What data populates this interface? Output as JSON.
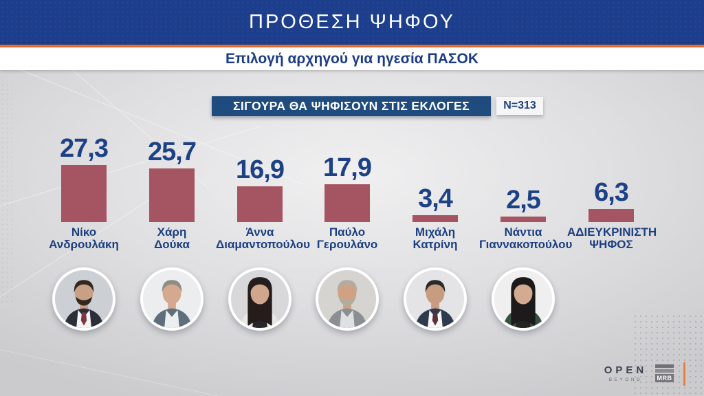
{
  "header": {
    "title": "ΠΡΟΘΕΣΗ ΨΗΦΟΥ",
    "subtitle": "Επιλογή αρχηγού για ηγεσία ΠΑΣΟΚ"
  },
  "chart_header": {
    "label": "ΣΙΓΟΥΡΑ ΘΑ ΨΗΦΙΣΟΥΝ ΣΤΙΣ ΕΚΛΟΓΕΣ",
    "sample": "N=313"
  },
  "chart_data": {
    "type": "bar",
    "title": "ΣΙΓΟΥΡΑ ΘΑ ΨΗΦΙΣΟΥΝ ΣΤΙΣ ΕΚΛΟΓΕΣ",
    "subtitle": "Επιλογή αρχηγού για ηγεσία ΠΑΣΟΚ",
    "sample_size": "N=313",
    "categories": [
      "Νίκο Ανδρουλάκη",
      "Χάρη Δούκα",
      "Άννα Διαμαντοπούλου",
      "Παύλο Γερουλάνο",
      "Μιχάλη Κατρίνη",
      "Νάντια Γιαννακοπούλου",
      "ΑΔΙΕΥΚΡΙΝΙΣΤΗ ΨΗΦΟΣ"
    ],
    "values": [
      27.3,
      25.7,
      16.9,
      17.9,
      3.4,
      2.5,
      6.3
    ],
    "value_labels": [
      "27,3",
      "25,7",
      "16,9",
      "17,9",
      "3,4",
      "2,5",
      "6,3"
    ],
    "unit": "percent",
    "bar_color": "#a55561",
    "label_color": "#1d4185",
    "ylim": [
      0,
      30
    ],
    "grid": false,
    "legend_position": "none",
    "xlabel": "",
    "ylabel": ""
  },
  "columns": [
    {
      "name_lines": [
        "Νίκο",
        "Ανδρουλάκη"
      ],
      "photo": true,
      "avatar": {
        "bg": "#ccd0d5",
        "hair": "#33281f",
        "skin": "#c99f85",
        "top": "#2b2f38",
        "shirt": "#f4f4f4",
        "tie": "#7e3742",
        "beard": true,
        "style": "short"
      }
    },
    {
      "name_lines": [
        "Χάρη",
        "Δούκα"
      ],
      "photo": true,
      "avatar": {
        "bg": "#ecedee",
        "hair": "#8f8c86",
        "skin": "#d4a98f",
        "top": "#5e6e7a",
        "shirt": "#eceff0",
        "beard": false,
        "style": "short"
      }
    },
    {
      "name_lines": [
        "Άννα",
        "Διαμαντοπούλου"
      ],
      "photo": true,
      "avatar": {
        "bg": "#d8d8da",
        "hair": "#241d1c",
        "skin": "#d0a68c",
        "top": "#e9e7e4",
        "shirt": "#26262b",
        "beard": false,
        "style": "long"
      }
    },
    {
      "name_lines": [
        "Παύλο",
        "Γερουλάνο"
      ],
      "photo": true,
      "avatar": {
        "bg": "#d6d4d0",
        "hair": "#b2aca0",
        "skin": "#cfa284",
        "top": "#8a8f93",
        "shirt": "#dfe0e1",
        "beard": true,
        "style": "short"
      }
    },
    {
      "name_lines": [
        "Μιχάλη",
        "Κατρίνη"
      ],
      "photo": true,
      "avatar": {
        "bg": "#e4e4e6",
        "hair": "#2c2a28",
        "skin": "#c79c80",
        "top": "#2e3a4e",
        "shirt": "#f6f6f6",
        "tie": "#5c2f3d",
        "beard": false,
        "style": "short"
      }
    },
    {
      "name_lines": [
        "Νάντια",
        "Γιαννακοπούλου"
      ],
      "photo": true,
      "avatar": {
        "bg": "#efefef",
        "hair": "#1c1a1a",
        "skin": "#d3ab90",
        "top": "#37503f",
        "shirt": "#23231f",
        "beard": false,
        "style": "long"
      }
    },
    {
      "name_lines": [
        "ΑΔΙΕΥΚΡΙΝΙΣΤΗ",
        "ΨΗΦΟΣ"
      ],
      "photo": false
    }
  ],
  "logos": {
    "open": "OPEN",
    "beyond": "BEYOND",
    "mrb": "MRB"
  },
  "colors": {
    "header_blue": "#1d3e8c",
    "accent_orange": "#e2702f",
    "chart_bar_blue": "#1f4b7e",
    "bar_maroon": "#a55561",
    "navy_text": "#1b3f80",
    "panel_gray": "#dcdcde"
  }
}
